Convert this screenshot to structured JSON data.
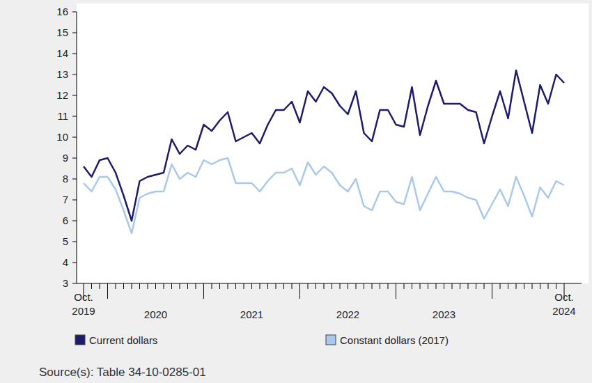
{
  "chart_data": {
    "type": "line",
    "categories": [
      "Oct. 2019",
      null,
      null,
      null,
      null,
      null,
      null,
      null,
      null,
      "2020",
      null,
      null,
      null,
      null,
      null,
      null,
      null,
      null,
      null,
      null,
      null,
      "2021",
      null,
      null,
      null,
      null,
      null,
      null,
      null,
      null,
      null,
      null,
      null,
      "2022",
      null,
      null,
      null,
      null,
      null,
      null,
      null,
      null,
      null,
      null,
      null,
      "2023",
      null,
      null,
      null,
      null,
      null,
      null,
      null,
      null,
      null,
      null,
      null,
      null,
      null,
      null,
      "Oct. 2024"
    ],
    "series": [
      {
        "name": "Current dollars",
        "color": "#1c1c6b",
        "values": [
          8.6,
          8.1,
          8.9,
          9.0,
          8.3,
          7.2,
          6.0,
          7.9,
          8.1,
          8.2,
          8.3,
          9.9,
          9.2,
          9.6,
          9.4,
          10.6,
          10.3,
          10.8,
          11.2,
          9.8,
          10.0,
          10.2,
          9.7,
          10.6,
          11.3,
          11.3,
          11.7,
          10.7,
          12.2,
          11.7,
          12.4,
          12.1,
          11.5,
          11.1,
          12.2,
          10.2,
          9.8,
          11.3,
          11.3,
          10.6,
          10.5,
          12.4,
          10.1,
          11.5,
          12.7,
          11.6,
          11.6,
          11.6,
          11.3,
          11.2,
          9.7,
          11.0,
          12.2,
          10.9,
          13.2,
          11.7,
          10.2,
          12.5,
          11.6,
          13.0,
          12.6
        ]
      },
      {
        "name": "Constant dollars (2017)",
        "color": "#a8c8ec",
        "values": [
          7.8,
          7.4,
          8.1,
          8.1,
          7.5,
          6.5,
          5.4,
          7.1,
          7.3,
          7.4,
          7.4,
          8.7,
          8.0,
          8.3,
          8.1,
          8.9,
          8.7,
          8.9,
          9.0,
          7.8,
          7.8,
          7.8,
          7.4,
          7.9,
          8.3,
          8.3,
          8.5,
          7.7,
          8.8,
          8.2,
          8.6,
          8.3,
          7.7,
          7.4,
          8.0,
          6.7,
          6.5,
          7.4,
          7.4,
          6.9,
          6.8,
          8.1,
          6.5,
          7.3,
          8.1,
          7.4,
          7.4,
          7.3,
          7.1,
          7.0,
          6.1,
          6.8,
          7.5,
          6.7,
          8.1,
          7.2,
          6.2,
          7.6,
          7.1,
          7.9,
          7.7
        ]
      }
    ],
    "ylim": [
      3,
      16
    ],
    "yticks": [
      3,
      4,
      5,
      6,
      7,
      8,
      9,
      10,
      11,
      12,
      13,
      14,
      15,
      16
    ],
    "grid": false,
    "legend": "bottom",
    "source": "Source(s): Table 34-10-0285-01"
  }
}
